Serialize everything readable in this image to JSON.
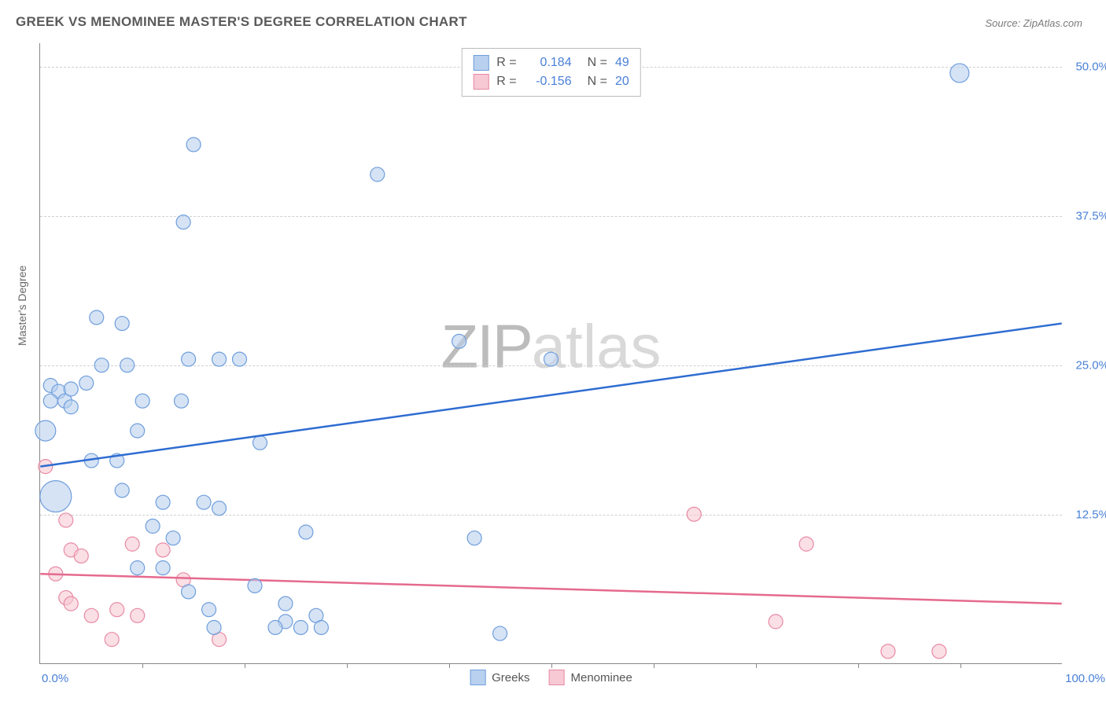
{
  "title": "GREEK VS MENOMINEE MASTER'S DEGREE CORRELATION CHART",
  "source_label": "Source: ",
  "source_name": "ZipAtlas.com",
  "y_axis_label": "Master's Degree",
  "watermark": {
    "prefix": "ZIP",
    "suffix": "atlas"
  },
  "chart": {
    "type": "scatter",
    "xlim": [
      0.0,
      100.0
    ],
    "ylim": [
      0.0,
      52.0
    ],
    "x_tick_labels": [
      "0.0%",
      "100.0%"
    ],
    "y_grid": [
      12.5,
      25.0,
      37.5,
      50.0
    ],
    "y_tick_labels": [
      "12.5%",
      "25.0%",
      "37.5%",
      "50.0%"
    ],
    "x_minor_ticks": [
      10,
      20,
      30,
      40,
      50,
      60,
      70,
      80,
      90
    ],
    "background": "#ffffff",
    "grid_color": "#d0d0d0",
    "axis_color": "#888888",
    "tick_label_color": "#4a80d8"
  },
  "legend_main": {
    "rows": [
      {
        "swatch_fill": "#b9d1ef",
        "swatch_border": "#6f9edc",
        "r_label": "R = ",
        "r_value": "0.184",
        "n_label": "N = ",
        "n_value": "49"
      },
      {
        "swatch_fill": "#f6c9d4",
        "swatch_border": "#e88aa4",
        "r_label": "R = ",
        "r_value": "-0.156",
        "n_label": "N = ",
        "n_value": "20"
      }
    ]
  },
  "legend_bottom": {
    "items": [
      {
        "swatch_fill": "#b9d1ef",
        "swatch_border": "#6f9edc",
        "label": "Greeks"
      },
      {
        "swatch_fill": "#f6c9d4",
        "swatch_border": "#e88aa4",
        "label": "Menominee"
      }
    ]
  },
  "series": {
    "greeks": {
      "fill": "#b9d1ef",
      "stroke": "#6f9edc",
      "fill_opacity": 0.6,
      "default_r": 9,
      "trend": {
        "color": "#2e6cd1",
        "y_at_x0": 16.5,
        "y_at_x100": 28.5
      },
      "points": [
        {
          "x": 1.0,
          "y": 23.3,
          "r": 9
        },
        {
          "x": 1.8,
          "y": 22.8,
          "r": 9
        },
        {
          "x": 2.4,
          "y": 22.0,
          "r": 9
        },
        {
          "x": 3.0,
          "y": 23.0,
          "r": 9
        },
        {
          "x": 1.0,
          "y": 22.0,
          "r": 9
        },
        {
          "x": 3.0,
          "y": 21.5,
          "r": 9
        },
        {
          "x": 4.5,
          "y": 23.5,
          "r": 9
        },
        {
          "x": 0.5,
          "y": 19.5,
          "r": 13
        },
        {
          "x": 1.5,
          "y": 14.0,
          "r": 20
        },
        {
          "x": 5.5,
          "y": 29.0,
          "r": 9
        },
        {
          "x": 8.0,
          "y": 28.5,
          "r": 9
        },
        {
          "x": 6.0,
          "y": 25.0,
          "r": 9
        },
        {
          "x": 8.5,
          "y": 25.0,
          "r": 9
        },
        {
          "x": 10.0,
          "y": 22.0,
          "r": 9
        },
        {
          "x": 13.8,
          "y": 22.0,
          "r": 9
        },
        {
          "x": 15.0,
          "y": 43.5,
          "r": 9
        },
        {
          "x": 14.0,
          "y": 37.0,
          "r": 9
        },
        {
          "x": 14.5,
          "y": 25.5,
          "r": 9
        },
        {
          "x": 17.5,
          "y": 25.5,
          "r": 9
        },
        {
          "x": 19.5,
          "y": 25.5,
          "r": 9
        },
        {
          "x": 9.5,
          "y": 19.5,
          "r": 9
        },
        {
          "x": 5.0,
          "y": 17.0,
          "r": 9
        },
        {
          "x": 7.5,
          "y": 17.0,
          "r": 9
        },
        {
          "x": 8.0,
          "y": 14.5,
          "r": 9
        },
        {
          "x": 11.0,
          "y": 11.5,
          "r": 9
        },
        {
          "x": 12.0,
          "y": 13.5,
          "r": 9
        },
        {
          "x": 16.0,
          "y": 13.5,
          "r": 9
        },
        {
          "x": 17.5,
          "y": 13.0,
          "r": 9
        },
        {
          "x": 9.5,
          "y": 8.0,
          "r": 9
        },
        {
          "x": 12.0,
          "y": 8.0,
          "r": 9
        },
        {
          "x": 13.0,
          "y": 10.5,
          "r": 9
        },
        {
          "x": 14.5,
          "y": 6.0,
          "r": 9
        },
        {
          "x": 16.5,
          "y": 4.5,
          "r": 9
        },
        {
          "x": 17.0,
          "y": 3.0,
          "r": 9
        },
        {
          "x": 21.0,
          "y": 6.5,
          "r": 9
        },
        {
          "x": 21.5,
          "y": 18.5,
          "r": 9
        },
        {
          "x": 24.0,
          "y": 5.0,
          "r": 9
        },
        {
          "x": 24.0,
          "y": 3.5,
          "r": 9
        },
        {
          "x": 25.5,
          "y": 3.0,
          "r": 9
        },
        {
          "x": 27.0,
          "y": 4.0,
          "r": 9
        },
        {
          "x": 27.5,
          "y": 3.0,
          "r": 9
        },
        {
          "x": 26.0,
          "y": 11.0,
          "r": 9
        },
        {
          "x": 23.0,
          "y": 3.0,
          "r": 9
        },
        {
          "x": 33.0,
          "y": 41.0,
          "r": 9
        },
        {
          "x": 41.0,
          "y": 27.0,
          "r": 9
        },
        {
          "x": 42.5,
          "y": 10.5,
          "r": 9
        },
        {
          "x": 45.0,
          "y": 2.5,
          "r": 9
        },
        {
          "x": 50.0,
          "y": 25.5,
          "r": 9
        },
        {
          "x": 90.0,
          "y": 49.5,
          "r": 12
        }
      ]
    },
    "menominee": {
      "fill": "#f6c9d4",
      "stroke": "#e88aa4",
      "fill_opacity": 0.6,
      "default_r": 9,
      "trend": {
        "color": "#e56a8e",
        "y_at_x0": 7.5,
        "y_at_x100": 5.0
      },
      "points": [
        {
          "x": 0.5,
          "y": 16.5,
          "r": 9
        },
        {
          "x": 2.5,
          "y": 12.0,
          "r": 9
        },
        {
          "x": 3.0,
          "y": 9.5,
          "r": 9
        },
        {
          "x": 4.0,
          "y": 9.0,
          "r": 9
        },
        {
          "x": 1.5,
          "y": 7.5,
          "r": 9
        },
        {
          "x": 2.5,
          "y": 5.5,
          "r": 9
        },
        {
          "x": 3.0,
          "y": 5.0,
          "r": 9
        },
        {
          "x": 5.0,
          "y": 4.0,
          "r": 9
        },
        {
          "x": 7.0,
          "y": 2.0,
          "r": 9
        },
        {
          "x": 7.5,
          "y": 4.5,
          "r": 9
        },
        {
          "x": 9.0,
          "y": 10.0,
          "r": 9
        },
        {
          "x": 9.5,
          "y": 4.0,
          "r": 9
        },
        {
          "x": 12.0,
          "y": 9.5,
          "r": 9
        },
        {
          "x": 14.0,
          "y": 7.0,
          "r": 9
        },
        {
          "x": 17.5,
          "y": 2.0,
          "r": 9
        },
        {
          "x": 64.0,
          "y": 12.5,
          "r": 9
        },
        {
          "x": 72.0,
          "y": 3.5,
          "r": 9
        },
        {
          "x": 75.0,
          "y": 10.0,
          "r": 9
        },
        {
          "x": 83.0,
          "y": 1.0,
          "r": 9
        },
        {
          "x": 88.0,
          "y": 1.0,
          "r": 9
        }
      ]
    }
  }
}
